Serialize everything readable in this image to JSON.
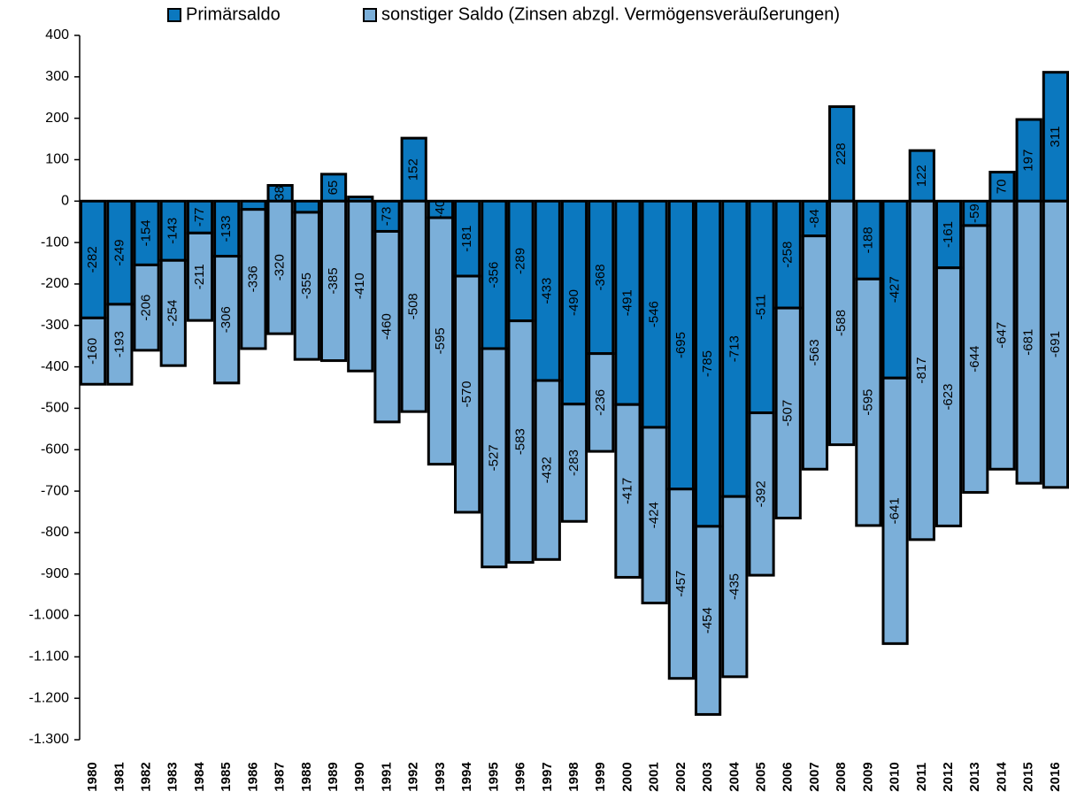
{
  "chart_data": {
    "type": "stacked_bar",
    "categories": [
      "1980",
      "1981",
      "1982",
      "1983",
      "1984",
      "1985",
      "1986",
      "1987",
      "1988",
      "1989",
      "1990",
      "1991",
      "1992",
      "1993",
      "1994",
      "1995",
      "1996",
      "1997",
      "1998",
      "1999",
      "2000",
      "2001",
      "2002",
      "2003",
      "2004",
      "2005",
      "2006",
      "2007",
      "2008",
      "2009",
      "2010",
      "2011",
      "2012",
      "2013",
      "2014",
      "2015",
      "2016"
    ],
    "series": [
      {
        "name": "Primärsaldo",
        "color": "#0b78bf",
        "values": [
          -282,
          -249,
          -154,
          -143,
          -77,
          -133,
          -20,
          38,
          -27,
          65,
          10,
          -73,
          152,
          -40,
          -181,
          -356,
          -289,
          -433,
          -490,
          -368,
          -491,
          -546,
          -695,
          -785,
          -713,
          -511,
          -258,
          -84,
          228,
          -188,
          -427,
          122,
          -161,
          -59,
          70,
          197,
          311
        ]
      },
      {
        "name": "sonstiger Saldo (Zinsen abzgl. Vermögensveräußerungen)",
        "color": "#7bafd9",
        "values": [
          -160,
          -193,
          -206,
          -254,
          -211,
          -306,
          -336,
          -320,
          -355,
          -385,
          -410,
          -460,
          -508,
          -595,
          -570,
          -527,
          -583,
          -432,
          -283,
          -236,
          -417,
          -424,
          -457,
          -454,
          -435,
          -392,
          -507,
          -563,
          -588,
          -595,
          -641,
          -817,
          -623,
          -644,
          -647,
          -681,
          -691
        ]
      }
    ],
    "ylim": [
      -1300,
      400
    ],
    "yticks": [
      400,
      300,
      200,
      100,
      0,
      -100,
      -200,
      -300,
      -400,
      -500,
      -600,
      -700,
      -800,
      -900,
      {
        "value": -1000,
        "label": "-1.000"
      },
      {
        "value": -1100,
        "label": "-1.100"
      },
      {
        "value": -1200,
        "label": "-1.200"
      },
      {
        "value": -1300,
        "label": "-1.300"
      }
    ],
    "legend": "top"
  }
}
